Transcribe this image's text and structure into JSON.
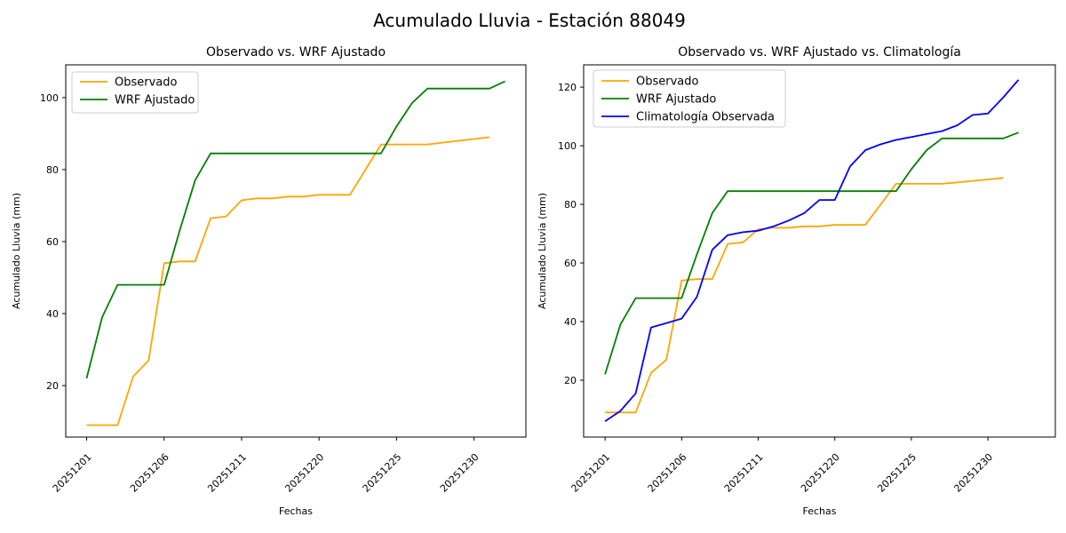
{
  "suptitle": "Acumulado Lluvia - Estación 88049",
  "colors": {
    "observado": "#ffa500",
    "wrf_ajustado": "#008000",
    "climatologia": "#0000ff",
    "axes_border": "#000000",
    "background": "#ffffff"
  },
  "chart_data": [
    {
      "type": "line",
      "title": "Observado vs. WRF Ajustado",
      "xlabel": "Fechas",
      "ylabel": "Acumulado Lluvia (mm)",
      "grid": false,
      "legend_position": "upper left",
      "n_categories": 28,
      "xtick_positions": [
        0,
        5,
        10,
        15,
        20,
        25
      ],
      "xtick_labels": [
        "20251201",
        "20251206",
        "20251211",
        "20251220",
        "20251225",
        "20251230"
      ],
      "yticks": [
        20,
        40,
        60,
        80,
        100
      ],
      "ylim": [
        5.7,
        109.1
      ],
      "series": [
        {
          "name": "Observado",
          "color": "#ffa500",
          "values": [
            9,
            9,
            9,
            22.5,
            27,
            54,
            54.5,
            54.5,
            66.5,
            67,
            71.5,
            72,
            72,
            72.5,
            72.5,
            73,
            73,
            73,
            80,
            87,
            87,
            87,
            87,
            87.5,
            88,
            88.5,
            89
          ]
        },
        {
          "name": "WRF Ajustado",
          "color": "#008000",
          "values": [
            22,
            39,
            48,
            48,
            48,
            48,
            63,
            77,
            84.5,
            84.5,
            84.5,
            84.5,
            84.5,
            84.5,
            84.5,
            84.5,
            84.5,
            84.5,
            84.5,
            84.5,
            92,
            98.5,
            102.5,
            102.5,
            102.5,
            102.5,
            102.5,
            104.5
          ]
        }
      ]
    },
    {
      "type": "line",
      "title": "Observado vs. WRF Ajustado vs. Climatología",
      "xlabel": "Fechas",
      "ylabel": "Acumulado Lluvia (mm)",
      "grid": false,
      "legend_position": "upper left",
      "n_categories": 29,
      "xtick_positions": [
        0,
        5,
        10,
        15,
        20,
        25
      ],
      "xtick_labels": [
        "20251201",
        "20251206",
        "20251211",
        "20251220",
        "20251225",
        "20251230"
      ],
      "yticks": [
        20,
        40,
        60,
        80,
        100,
        120
      ],
      "ylim": [
        0.6,
        127.6
      ],
      "series": [
        {
          "name": "Observado",
          "color": "#ffa500",
          "values": [
            9,
            9,
            9,
            22.5,
            27,
            54,
            54.5,
            54.5,
            66.5,
            67,
            71.5,
            72,
            72,
            72.5,
            72.5,
            73,
            73,
            73,
            80,
            87,
            87,
            87,
            87,
            87.5,
            88,
            88.5,
            89
          ]
        },
        {
          "name": "WRF Ajustado",
          "color": "#008000",
          "values": [
            22,
            39,
            48,
            48,
            48,
            48,
            63,
            77,
            84.5,
            84.5,
            84.5,
            84.5,
            84.5,
            84.5,
            84.5,
            84.5,
            84.5,
            84.5,
            84.5,
            84.5,
            92,
            98.5,
            102.5,
            102.5,
            102.5,
            102.5,
            102.5,
            104.5
          ]
        },
        {
          "name": "Climatología Observada",
          "color": "#0000ff",
          "values": [
            6,
            9.5,
            15.5,
            38,
            39.5,
            41,
            48.5,
            64.5,
            69.5,
            70.5,
            71,
            72.5,
            74.5,
            77,
            81.5,
            81.5,
            93,
            98.5,
            100.5,
            102,
            103,
            104,
            105,
            107,
            110.5,
            111,
            116.5,
            122.5
          ]
        }
      ]
    }
  ]
}
